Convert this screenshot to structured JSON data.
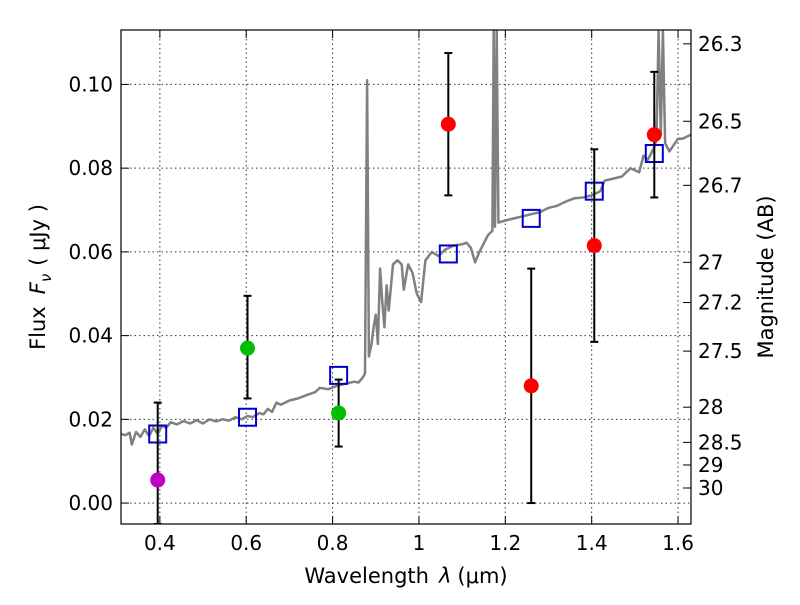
{
  "chart_data": {
    "type": "scatter",
    "xlabel_prefix": "Wavelength",
    "xlabel_symbol": "λ",
    "xlabel_unit": "(μm)",
    "ylabel_prefix": "Flux",
    "ylabel_symbol": "F",
    "ylabel_sub": "ν",
    "ylabel_unit": "( μJy )",
    "y2label": "Magnitude (AB)",
    "xlim": [
      0.31,
      1.63
    ],
    "ylim": [
      -0.005,
      0.113
    ],
    "x_ticks": [
      0.4,
      0.6,
      0.8,
      1.0,
      1.2,
      1.4,
      1.6
    ],
    "x_tick_labels": [
      "0.4",
      "0.6",
      "0.8",
      "1",
      "1.2",
      "1.4",
      "1.6"
    ],
    "y_ticks": [
      0.0,
      0.02,
      0.04,
      0.06,
      0.08,
      0.1
    ],
    "y_tick_labels": [
      "0.00",
      "0.02",
      "0.04",
      "0.06",
      "0.08",
      "0.10"
    ],
    "y2_ticks": [
      {
        "label": "26.3",
        "flux": 0.1097
      },
      {
        "label": "26.5",
        "flux": 0.0912
      },
      {
        "label": "26.7",
        "flux": 0.0759
      },
      {
        "label": "27",
        "flux": 0.0575
      },
      {
        "label": "27.2",
        "flux": 0.0479
      },
      {
        "label": "27.5",
        "flux": 0.0363
      },
      {
        "label": "28",
        "flux": 0.0229
      },
      {
        "label": "28.5",
        "flux": 0.0145
      },
      {
        "label": "29",
        "flux": 0.0091
      },
      {
        "label": "30",
        "flux": 0.0036
      }
    ],
    "colors": {
      "model": "#808080",
      "model_photometry": "#0000cc",
      "errorbar": "#000000",
      "purple": "#bf00bf",
      "green": "#00bf00",
      "red": "#ff0000"
    },
    "observed": [
      {
        "x": 0.395,
        "y": 0.0055,
        "err_lo": 0.0105,
        "err_hi": 0.0185,
        "color": "purple"
      },
      {
        "x": 0.603,
        "y": 0.037,
        "err_lo": 0.012,
        "err_hi": 0.0125,
        "color": "green"
      },
      {
        "x": 0.814,
        "y": 0.0215,
        "err_lo": 0.008,
        "err_hi": 0.008,
        "color": "green"
      },
      {
        "x": 1.068,
        "y": 0.0905,
        "err_lo": 0.017,
        "err_hi": 0.017,
        "color": "red"
      },
      {
        "x": 1.26,
        "y": 0.028,
        "err_lo": 0.028,
        "err_hi": 0.028,
        "color": "red"
      },
      {
        "x": 1.406,
        "y": 0.0615,
        "err_lo": 0.023,
        "err_hi": 0.023,
        "color": "red"
      },
      {
        "x": 1.545,
        "y": 0.088,
        "err_lo": 0.015,
        "err_hi": 0.015,
        "color": "red"
      }
    ],
    "model_photometry": [
      {
        "x": 0.395,
        "y": 0.0165
      },
      {
        "x": 0.603,
        "y": 0.0205
      },
      {
        "x": 0.814,
        "y": 0.0305
      },
      {
        "x": 1.068,
        "y": 0.0595
      },
      {
        "x": 1.26,
        "y": 0.068
      },
      {
        "x": 1.406,
        "y": 0.0745
      },
      {
        "x": 1.545,
        "y": 0.0835
      }
    ],
    "model_spectrum": [
      [
        0.31,
        0.0165
      ],
      [
        0.32,
        0.0162
      ],
      [
        0.33,
        0.0168
      ],
      [
        0.335,
        0.014
      ],
      [
        0.345,
        0.017
      ],
      [
        0.355,
        0.0158
      ],
      [
        0.365,
        0.0176
      ],
      [
        0.375,
        0.016
      ],
      [
        0.385,
        0.018
      ],
      [
        0.395,
        0.0165
      ],
      [
        0.405,
        0.0185
      ],
      [
        0.415,
        0.018
      ],
      [
        0.425,
        0.0193
      ],
      [
        0.44,
        0.0188
      ],
      [
        0.455,
        0.0196
      ],
      [
        0.47,
        0.019
      ],
      [
        0.485,
        0.0198
      ],
      [
        0.5,
        0.019
      ],
      [
        0.515,
        0.02
      ],
      [
        0.53,
        0.0195
      ],
      [
        0.545,
        0.02
      ],
      [
        0.56,
        0.0197
      ],
      [
        0.575,
        0.0205
      ],
      [
        0.59,
        0.02
      ],
      [
        0.603,
        0.0208
      ],
      [
        0.615,
        0.0205
      ],
      [
        0.63,
        0.0215
      ],
      [
        0.64,
        0.0212
      ],
      [
        0.65,
        0.0225
      ],
      [
        0.66,
        0.0218
      ],
      [
        0.67,
        0.024
      ],
      [
        0.68,
        0.0235
      ],
      [
        0.7,
        0.0245
      ],
      [
        0.72,
        0.025
      ],
      [
        0.74,
        0.0258
      ],
      [
        0.76,
        0.0265
      ],
      [
        0.77,
        0.0275
      ],
      [
        0.79,
        0.0272
      ],
      [
        0.81,
        0.028
      ],
      [
        0.83,
        0.0285
      ],
      [
        0.85,
        0.029
      ],
      [
        0.86,
        0.0288
      ],
      [
        0.87,
        0.03
      ],
      [
        0.875,
        0.031
      ],
      [
        0.88,
        0.101
      ],
      [
        0.884,
        0.035
      ],
      [
        0.89,
        0.038
      ],
      [
        0.895,
        0.042
      ],
      [
        0.9,
        0.045
      ],
      [
        0.905,
        0.038
      ],
      [
        0.91,
        0.056
      ],
      [
        0.915,
        0.048
      ],
      [
        0.92,
        0.042
      ],
      [
        0.925,
        0.052
      ],
      [
        0.93,
        0.046
      ],
      [
        0.94,
        0.057
      ],
      [
        0.95,
        0.058
      ],
      [
        0.96,
        0.057
      ],
      [
        0.965,
        0.051
      ],
      [
        0.975,
        0.057
      ],
      [
        0.985,
        0.055
      ],
      [
        0.995,
        0.05
      ],
      [
        1.005,
        0.048
      ],
      [
        1.015,
        0.058
      ],
      [
        1.03,
        0.06
      ],
      [
        1.045,
        0.059
      ],
      [
        1.06,
        0.0605
      ],
      [
        1.08,
        0.0615
      ],
      [
        1.1,
        0.0618
      ],
      [
        1.11,
        0.0622
      ],
      [
        1.12,
        0.061
      ],
      [
        1.13,
        0.0575
      ],
      [
        1.14,
        0.06
      ],
      [
        1.15,
        0.062
      ],
      [
        1.16,
        0.064
      ],
      [
        1.17,
        0.065
      ],
      [
        1.173,
        0.113
      ],
      [
        1.176,
        0.066
      ],
      [
        1.18,
        0.113
      ],
      [
        1.184,
        0.067
      ],
      [
        1.2,
        0.0675
      ],
      [
        1.22,
        0.068
      ],
      [
        1.24,
        0.0685
      ],
      [
        1.26,
        0.069
      ],
      [
        1.28,
        0.0695
      ],
      [
        1.3,
        0.0705
      ],
      [
        1.32,
        0.071
      ],
      [
        1.34,
        0.072
      ],
      [
        1.36,
        0.0728
      ],
      [
        1.38,
        0.073
      ],
      [
        1.4,
        0.0735
      ],
      [
        1.42,
        0.0745
      ],
      [
        1.43,
        0.077
      ],
      [
        1.45,
        0.0775
      ],
      [
        1.47,
        0.078
      ],
      [
        1.49,
        0.08
      ],
      [
        1.51,
        0.079
      ],
      [
        1.52,
        0.083
      ],
      [
        1.53,
        0.082
      ],
      [
        1.54,
        0.084
      ],
      [
        1.545,
        0.085
      ],
      [
        1.55,
        0.087
      ],
      [
        1.555,
        0.113
      ],
      [
        1.56,
        0.088
      ],
      [
        1.565,
        0.113
      ],
      [
        1.57,
        0.086
      ],
      [
        1.58,
        0.084
      ],
      [
        1.59,
        0.0855
      ],
      [
        1.6,
        0.087
      ],
      [
        1.61,
        0.087
      ],
      [
        1.63,
        0.088
      ]
    ]
  }
}
